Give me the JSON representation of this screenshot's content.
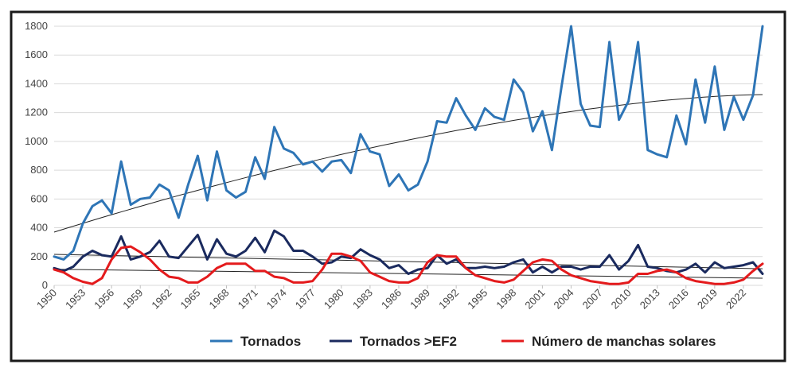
{
  "chart_data": {
    "type": "line",
    "ylim": [
      0,
      1800
    ],
    "yticks": [
      0,
      200,
      400,
      600,
      800,
      1000,
      1200,
      1400,
      1600,
      1800
    ],
    "xticks": [
      "1950",
      "1953",
      "1956",
      "1959",
      "1962",
      "1965",
      "1968",
      "1971",
      "1974",
      "1977",
      "1980",
      "1983",
      "1986",
      "1989",
      "1992",
      "1995",
      "1998",
      "2001",
      "2004",
      "2007",
      "2010",
      "2013",
      "2016",
      "2019",
      "2022"
    ],
    "x": [
      1950,
      1951,
      1952,
      1953,
      1954,
      1955,
      1956,
      1957,
      1958,
      1959,
      1960,
      1961,
      1962,
      1963,
      1964,
      1965,
      1966,
      1967,
      1968,
      1969,
      1970,
      1971,
      1972,
      1973,
      1974,
      1975,
      1976,
      1977,
      1978,
      1979,
      1980,
      1981,
      1982,
      1983,
      1984,
      1985,
      1986,
      1987,
      1988,
      1989,
      1990,
      1991,
      1992,
      1993,
      1994,
      1995,
      1996,
      1997,
      1998,
      1999,
      2000,
      2001,
      2002,
      2003,
      2004,
      2005,
      2006,
      2007,
      2008,
      2009,
      2010,
      2011,
      2012,
      2013,
      2014,
      2015,
      2016,
      2017,
      2018,
      2019,
      2020,
      2021,
      2022,
      2023,
      2024
    ],
    "grid": true,
    "legend_position": "bottom",
    "series": [
      {
        "name": "Tornados",
        "color": "#2e75b6",
        "values": [
          200,
          180,
          240,
          430,
          550,
          590,
          500,
          860,
          560,
          600,
          610,
          700,
          660,
          470,
          700,
          900,
          590,
          930,
          660,
          610,
          650,
          890,
          740,
          1100,
          950,
          920,
          840,
          860,
          790,
          860,
          870,
          780,
          1050,
          930,
          910,
          690,
          770,
          660,
          700,
          860,
          1140,
          1130,
          1300,
          1180,
          1080,
          1230,
          1170,
          1150,
          1430,
          1340,
          1070,
          1210,
          940,
          1380,
          1800,
          1260,
          1110,
          1100,
          1690,
          1150,
          1280,
          1690,
          940,
          910,
          890,
          1180,
          980,
          1430,
          1130,
          1520,
          1080,
          1310,
          1150,
          1320,
          1800
        ]
      },
      {
        "name": "Tornados >EF2",
        "color": "#1a2a5e",
        "values": [
          120,
          100,
          130,
          200,
          240,
          210,
          200,
          340,
          180,
          200,
          230,
          310,
          200,
          190,
          270,
          350,
          180,
          320,
          220,
          200,
          240,
          330,
          230,
          380,
          340,
          240,
          240,
          200,
          150,
          160,
          200,
          190,
          250,
          210,
          180,
          120,
          140,
          80,
          110,
          120,
          210,
          150,
          180,
          120,
          120,
          130,
          120,
          130,
          160,
          180,
          90,
          130,
          90,
          130,
          130,
          110,
          130,
          130,
          210,
          110,
          170,
          280,
          130,
          120,
          100,
          90,
          110,
          150,
          90,
          160,
          120,
          130,
          140,
          160,
          80
        ]
      },
      {
        "name": "Número de manchas solares",
        "color": "#e41a1c",
        "values": [
          110,
          90,
          50,
          25,
          10,
          50,
          180,
          260,
          270,
          230,
          180,
          110,
          60,
          50,
          20,
          20,
          60,
          120,
          150,
          150,
          150,
          100,
          100,
          60,
          50,
          20,
          20,
          30,
          110,
          220,
          220,
          200,
          170,
          90,
          60,
          30,
          20,
          20,
          50,
          160,
          210,
          200,
          200,
          120,
          70,
          50,
          30,
          20,
          40,
          100,
          160,
          180,
          170,
          110,
          70,
          50,
          30,
          20,
          10,
          10,
          20,
          80,
          80,
          100,
          110,
          90,
          50,
          30,
          20,
          10,
          10,
          20,
          40,
          100,
          150
        ]
      }
    ],
    "trendlines": [
      {
        "series": "Tornados",
        "color": "#222222",
        "values": [
          370,
          1325
        ]
      },
      {
        "series": "Tornados >EF2",
        "color": "#222222",
        "values": [
          215,
          115
        ]
      },
      {
        "series": "Número de manchas solares",
        "color": "#222222",
        "values": [
          112,
          50
        ]
      }
    ]
  }
}
